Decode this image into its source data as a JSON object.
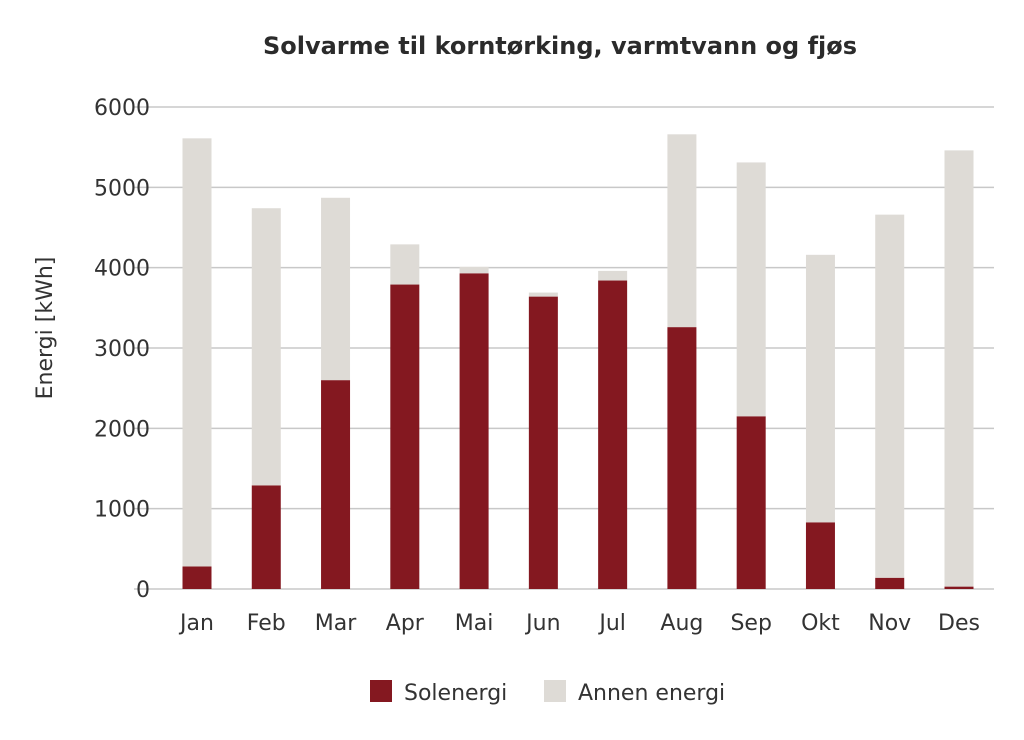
{
  "chart_data": {
    "type": "bar",
    "stacked": true,
    "title": "Solvarme til korntørking, varmtvann og fjøs",
    "xlabel": "",
    "ylabel": "Energi [kWh]",
    "ylim": [
      0,
      6000
    ],
    "yticks": [
      "0",
      "1000",
      "2000",
      "3000",
      "4000",
      "5000",
      "6000"
    ],
    "grid": true,
    "legend_position": "bottom",
    "categories": [
      "Jan",
      "Feb",
      "Mar",
      "Apr",
      "Mai",
      "Jun",
      "Jul",
      "Aug",
      "Sep",
      "Okt",
      "Nov",
      "Des"
    ],
    "series": [
      {
        "name": "Solenergi",
        "color": "#841820",
        "values": [
          280,
          1290,
          2600,
          3790,
          3930,
          3640,
          3840,
          3260,
          2150,
          830,
          140,
          30
        ]
      },
      {
        "name": "Annen energi",
        "color": "#dedbd6",
        "values": [
          5330,
          3450,
          2270,
          500,
          80,
          50,
          120,
          2400,
          3160,
          3330,
          4520,
          5430
        ]
      }
    ]
  }
}
